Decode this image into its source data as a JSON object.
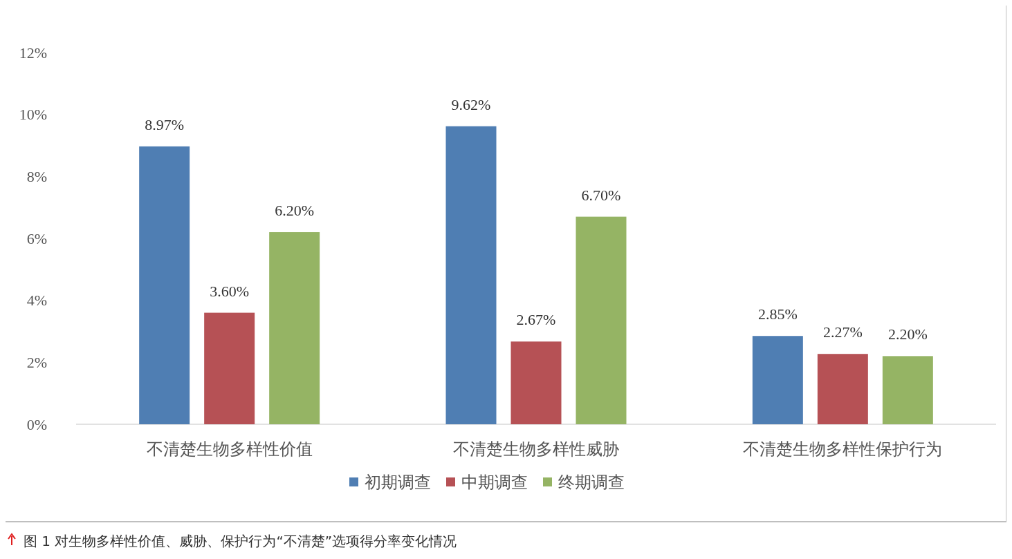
{
  "chart_data": {
    "type": "bar",
    "categories": [
      "不清楚生物多样性价值",
      "不清楚生物多样性威胁",
      "不清楚生物多样性保护行为"
    ],
    "series": [
      {
        "name": "初期调查",
        "color": "#4f7eb3",
        "values": [
          8.97,
          9.62,
          2.85
        ],
        "value_labels": [
          "8.97%",
          "9.62%",
          "2.85%"
        ]
      },
      {
        "name": "中期调查",
        "color": "#b65155",
        "values": [
          3.6,
          2.67,
          2.27
        ],
        "value_labels": [
          "3.60%",
          "2.67%",
          "2.27%"
        ]
      },
      {
        "name": "终期调查",
        "color": "#95b464",
        "values": [
          6.2,
          6.7,
          2.2
        ],
        "value_labels": [
          "6.20%",
          "6.70%",
          "2.20%"
        ]
      }
    ],
    "ylim": [
      0,
      12
    ],
    "yticks": [
      {
        "value": 0,
        "label": "0%"
      },
      {
        "value": 2,
        "label": "2%"
      },
      {
        "value": 4,
        "label": "4%"
      },
      {
        "value": 6,
        "label": "6%"
      },
      {
        "value": 8,
        "label": "8%"
      },
      {
        "value": 10,
        "label": "10%"
      },
      {
        "value": 12,
        "label": "12%"
      }
    ],
    "legend": "bottom",
    "annotations": [
      "图 1  对生物多样性价值、威胁、保护行为“不清楚”选项得分率变化情况"
    ]
  }
}
